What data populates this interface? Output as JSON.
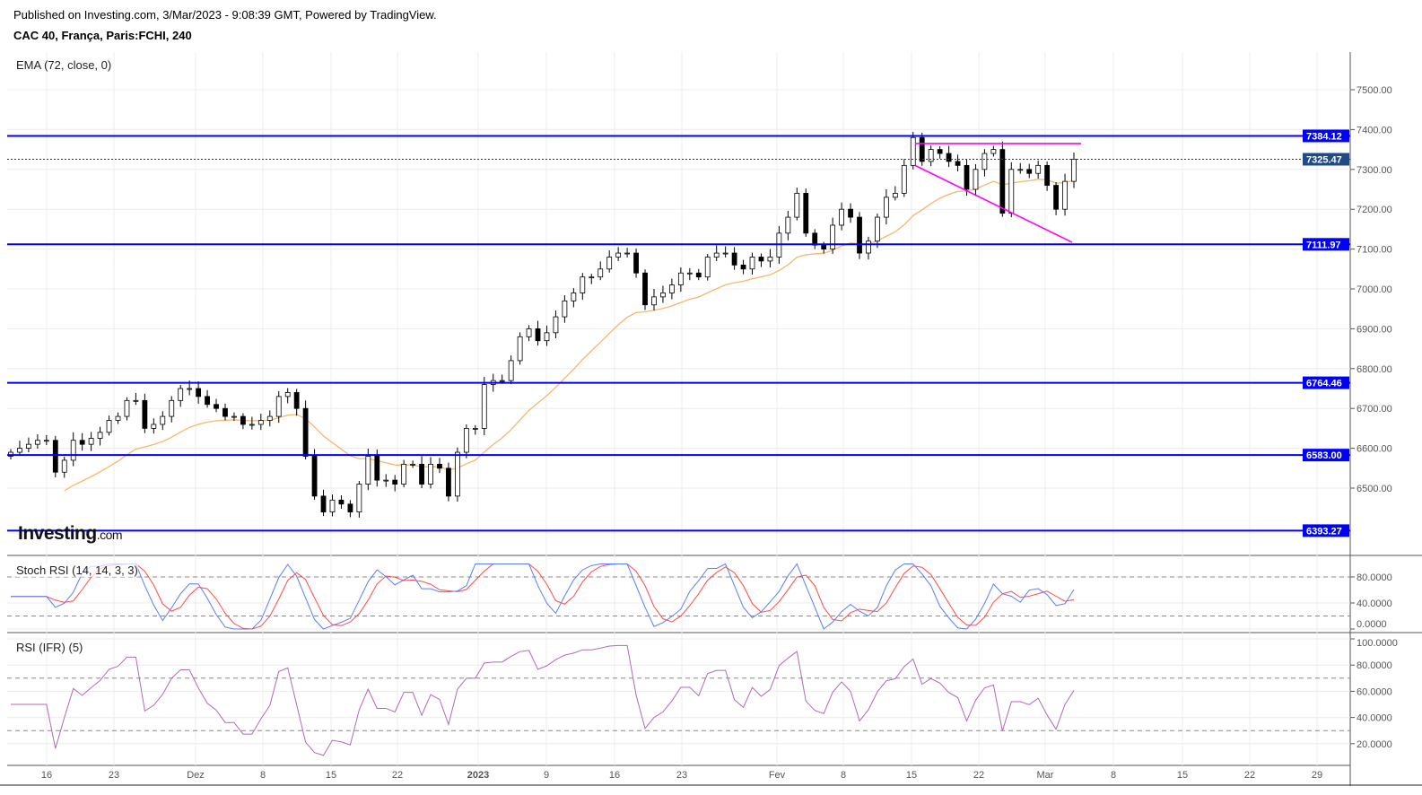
{
  "header": {
    "published": "Published on Investing.com, 3/Mar/2023 - 9:08:39 GMT, Powered by TradingView.",
    "symbol": "CAC 40, França, Paris:FCHI, 240"
  },
  "logo": {
    "name": "Investing",
    "suffix": ".com"
  },
  "colors": {
    "up": "#ffffff",
    "down": "#000000",
    "ema": "#f5b76a",
    "hline": "#0000ff",
    "trend": "#ff00ff",
    "stoch_k": "#5b7cff",
    "stoch_d": "#ff4a4a",
    "rsi": "#b06ab3",
    "last_tag": "#1e4a8a"
  },
  "chart_data": [
    {
      "type": "candlestick",
      "title": "EMA (72, close, 0)",
      "ylim": [
        6360,
        7560
      ],
      "y_ticks": [
        "7500.00",
        "7400.00",
        "7300.00",
        "7200.00",
        "7100.00",
        "7000.00",
        "6900.00",
        "6800.00",
        "6700.00",
        "6600.00",
        "6500.00"
      ],
      "y_tick_values": [
        7500,
        7400,
        7300,
        7200,
        7100,
        7000,
        6900,
        6800,
        6700,
        6600,
        6500
      ],
      "last_price": "7325.47",
      "horizontal_levels": [
        "7384.12",
        "7111.97",
        "6764.46",
        "6583.00",
        "6393.27"
      ],
      "trendlines": [
        {
          "from": 7365,
          "to": 7365
        },
        {
          "from": 7310,
          "to": 7117
        }
      ],
      "closes": [
        6590,
        6600,
        6610,
        6620,
        6620,
        6540,
        6570,
        6620,
        6610,
        6625,
        6640,
        6670,
        6680,
        6720,
        6720,
        6650,
        6660,
        6680,
        6720,
        6750,
        6750,
        6730,
        6710,
        6700,
        6680,
        6680,
        6660,
        6660,
        6670,
        6680,
        6730,
        6740,
        6700,
        6580,
        6480,
        6440,
        6470,
        6460,
        6440,
        6510,
        6580,
        6520,
        6520,
        6510,
        6560,
        6560,
        6510,
        6560,
        6550,
        6480,
        6590,
        6650,
        6650,
        6760,
        6770,
        6770,
        6820,
        6880,
        6900,
        6870,
        6890,
        6930,
        6970,
        6990,
        7030,
        7030,
        7050,
        7080,
        7090,
        7090,
        7040,
        6960,
        6980,
        6990,
        7010,
        7040,
        7040,
        7030,
        7080,
        7090,
        7090,
        7060,
        7050,
        7080,
        7070,
        7080,
        7140,
        7180,
        7240,
        7140,
        7110,
        7100,
        7160,
        7200,
        7180,
        7090,
        7120,
        7180,
        7230,
        7240,
        7310,
        7380,
        7320,
        7350,
        7340,
        7320,
        7310,
        7250,
        7300,
        7340,
        7350,
        7190,
        7300,
        7300,
        7290,
        7310,
        7260,
        7200,
        7270,
        7325.47
      ]
    },
    {
      "type": "line",
      "title": "Stoch RSI (14, 14, 3, 3)",
      "ylim": [
        0,
        100
      ],
      "y_ticks": [
        "80.0000",
        "40.0000",
        "0.0000"
      ],
      "y_tick_values": [
        80,
        40,
        0
      ],
      "bands": [
        80,
        20
      ]
    },
    {
      "type": "line",
      "title": "RSI (IFR) (5)",
      "ylim": [
        0,
        100
      ],
      "y_ticks": [
        "100.0000",
        "80.0000",
        "60.0000",
        "40.0000",
        "20.0000"
      ],
      "y_tick_values": [
        100,
        80,
        60,
        40,
        20
      ],
      "bands": [
        70,
        30
      ]
    }
  ],
  "x_axis": {
    "ticks": [
      "16",
      "23",
      "Dez",
      "8",
      "15",
      "22",
      "2023",
      "9",
      "16",
      "23",
      "Fev",
      "8",
      "15",
      "22",
      "Mar",
      "8",
      "15",
      "22",
      "29"
    ],
    "bold": [
      "2023"
    ]
  }
}
